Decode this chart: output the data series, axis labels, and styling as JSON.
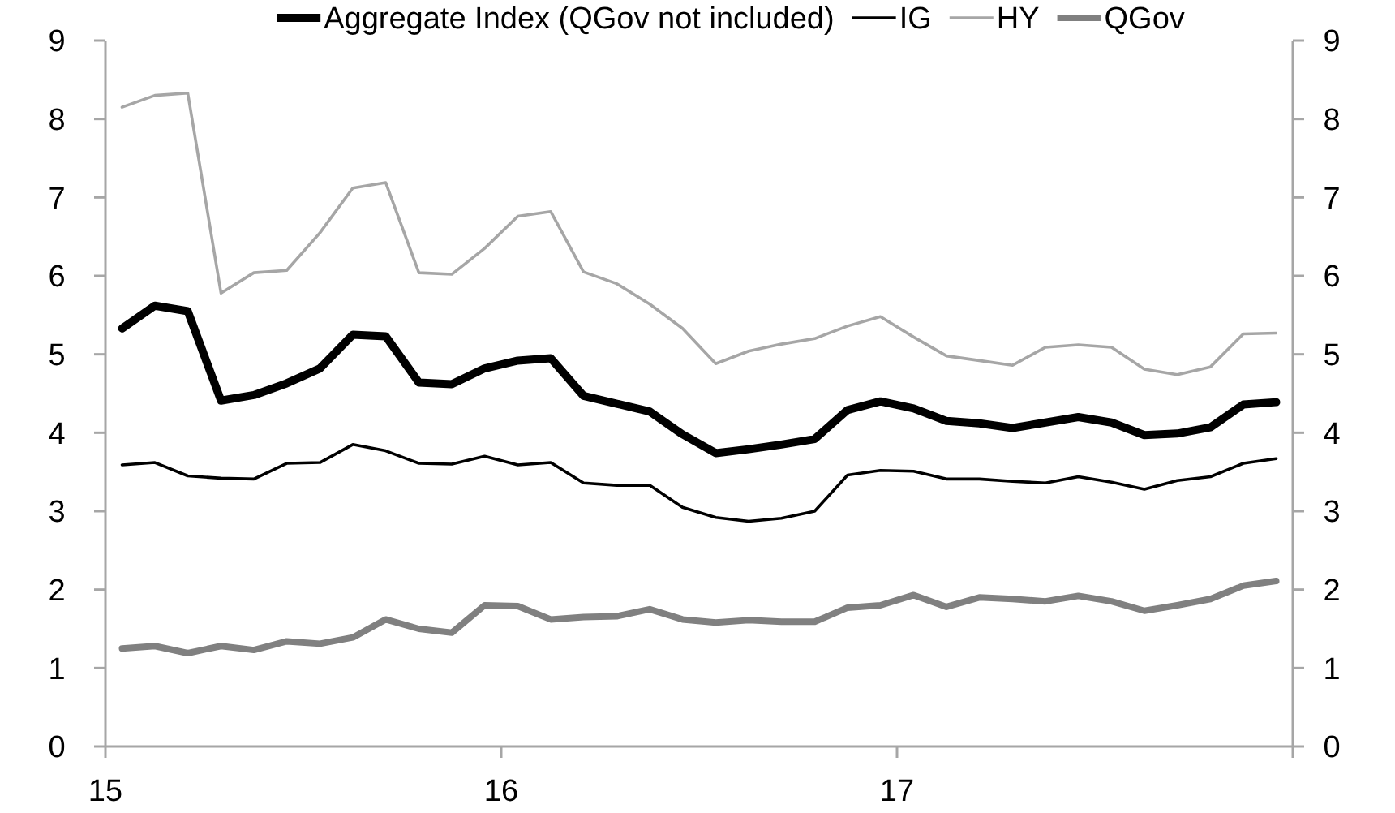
{
  "chart_data": {
    "type": "line",
    "x": [
      15.042,
      15.125,
      15.208,
      15.292,
      15.375,
      15.458,
      15.542,
      15.625,
      15.708,
      15.792,
      15.875,
      15.958,
      16.042,
      16.125,
      16.208,
      16.292,
      16.375,
      16.458,
      16.542,
      16.625,
      16.708,
      16.792,
      16.875,
      16.958,
      17.042,
      17.125,
      17.208,
      17.292,
      17.375,
      17.458,
      17.542,
      17.625,
      17.708,
      17.792,
      17.875,
      17.958
    ],
    "series": [
      {
        "name": "Aggregate Index (QGov not included)",
        "color": "#000000",
        "values": [
          5.33,
          5.62,
          5.55,
          4.41,
          4.48,
          4.63,
          4.82,
          5.25,
          5.23,
          4.64,
          4.62,
          4.82,
          4.92,
          4.95,
          4.47,
          4.37,
          4.27,
          3.98,
          3.74,
          3.79,
          3.85,
          3.92,
          4.29,
          4.4,
          4.31,
          4.15,
          4.12,
          4.06,
          4.13,
          4.2,
          4.13,
          3.97,
          3.99,
          4.07,
          4.36,
          4.39
        ]
      },
      {
        "name": "IG",
        "color": "#000000",
        "values": [
          3.59,
          3.62,
          3.45,
          3.42,
          3.41,
          3.61,
          3.62,
          3.85,
          3.77,
          3.61,
          3.6,
          3.7,
          3.59,
          3.62,
          3.36,
          3.33,
          3.33,
          3.05,
          2.92,
          2.87,
          2.91,
          3.0,
          3.46,
          3.52,
          3.51,
          3.41,
          3.41,
          3.38,
          3.36,
          3.44,
          3.37,
          3.28,
          3.39,
          3.44,
          3.61,
          3.67
        ]
      },
      {
        "name": "HY",
        "color": "#a6a6a6",
        "values": [
          8.15,
          8.3,
          8.33,
          5.78,
          6.04,
          6.07,
          6.55,
          7.12,
          7.19,
          6.04,
          6.02,
          6.35,
          6.76,
          6.82,
          6.05,
          5.9,
          5.64,
          5.33,
          4.88,
          5.04,
          5.13,
          5.2,
          5.36,
          5.48,
          5.22,
          4.98,
          4.92,
          4.86,
          5.09,
          5.12,
          5.09,
          4.81,
          4.74,
          4.84,
          5.26,
          5.27
        ]
      },
      {
        "name": "QGov",
        "color": "#808080",
        "values": [
          1.25,
          1.28,
          1.19,
          1.28,
          1.23,
          1.34,
          1.31,
          1.39,
          1.62,
          1.5,
          1.45,
          1.8,
          1.79,
          1.62,
          1.65,
          1.66,
          1.75,
          1.62,
          1.58,
          1.61,
          1.59,
          1.59,
          1.77,
          1.8,
          1.93,
          1.78,
          1.9,
          1.88,
          1.85,
          1.92,
          1.85,
          1.73,
          1.8,
          1.88,
          2.05,
          2.11
        ]
      }
    ],
    "xlim": [
      15,
      18
    ],
    "xticks": [
      15,
      16,
      17,
      {
        "value": 18,
        "label": null
      }
    ],
    "ylim": [
      0,
      9
    ],
    "yticks": [
      0,
      1,
      2,
      3,
      4,
      5,
      6,
      7,
      8,
      9
    ],
    "y2lim": [
      0,
      9
    ],
    "y2ticks": [
      0,
      1,
      2,
      3,
      4,
      5,
      6,
      7,
      8,
      9
    ],
    "grid": false,
    "legend": "top",
    "marker": "none",
    "line_style": "solid"
  }
}
